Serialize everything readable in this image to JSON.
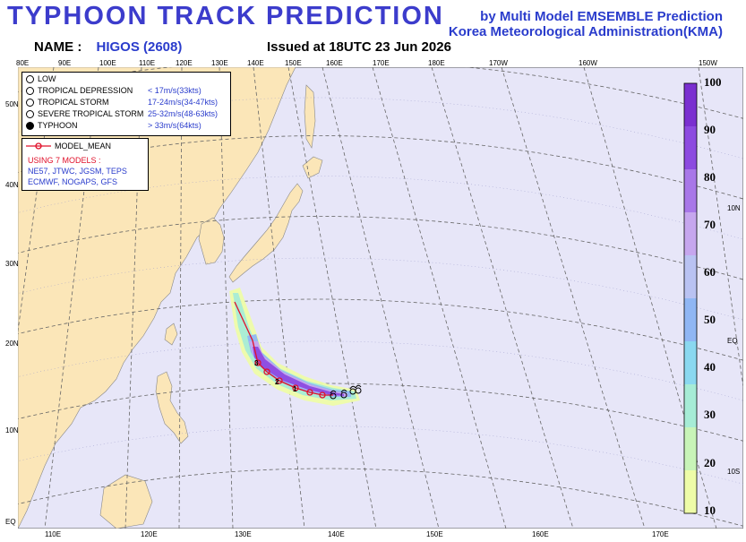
{
  "header": {
    "title": "TYPHOON  TRACK  PREDICTION",
    "credit_line1": "by Multi Model EMSEMBLE Prediction",
    "credit_line2": "Korea Meteorological Administration(KMA)",
    "name_label": "NAME :",
    "name_value": "HIGOS (2608)",
    "issued": "Issued at  18UTC 23 Jun 2026"
  },
  "top_lon_labels": [
    "80E",
    "90E",
    "100E",
    "110E",
    "120E",
    "130E",
    "140E",
    "150E",
    "160E",
    "170E",
    "180E",
    "170W",
    "160W",
    "150W"
  ],
  "bottom_lon_labels": [
    "110E",
    "120E",
    "130E",
    "140E",
    "150E",
    "160E",
    "170E"
  ],
  "left_lat_labels": [
    "50N",
    "40N",
    "30N",
    "20N",
    "10N",
    "EQ"
  ],
  "right_lat_labels": [
    "10N",
    "EQ",
    "10S"
  ],
  "legend": {
    "items": [
      {
        "label": "LOW",
        "value": "",
        "icon": "open-circle-icon"
      },
      {
        "label": "TROPICAL DEPRESSION",
        "value": "< 17m/s(33kts)",
        "icon": "crossed-circle-icon"
      },
      {
        "label": "TROPICAL STORM",
        "value": "17-24m/s(34-47kts)",
        "icon": "storm-open-icon"
      },
      {
        "label": "SEVERE TROPICAL STORM",
        "value": "25-32m/s(48-63kts)",
        "icon": "storm-dot-icon"
      },
      {
        "label": "TYPHOON",
        "value": "> 33m/s(64kts)",
        "icon": "storm-filled-icon"
      }
    ]
  },
  "models": {
    "mean_label": "MODEL_MEAN",
    "using_label": "USING 7 MODELS :",
    "list_line1": "NE57, JTWC, JGSM, TEPS",
    "list_line2": "ECMWF, NOGAPS, GFS"
  },
  "colorbar": {
    "labels": [
      "100",
      "90",
      "80",
      "70",
      "60",
      "50",
      "40",
      "30",
      "20",
      "10"
    ],
    "colors": [
      "#7a2fd0",
      "#8c4ae0",
      "#a877e8",
      "#c6a6ee",
      "#b9c2f2",
      "#8fb6f4",
      "#8ad8f0",
      "#a6ecd6",
      "#c8f4b8",
      "#eefca8"
    ]
  },
  "track_numbers": [
    "1",
    "2",
    "3"
  ],
  "colors": {
    "ocean": "#e7e6f8",
    "land": "#fbe6b8",
    "track": "#e0102a",
    "title": "#3c3ccc"
  }
}
